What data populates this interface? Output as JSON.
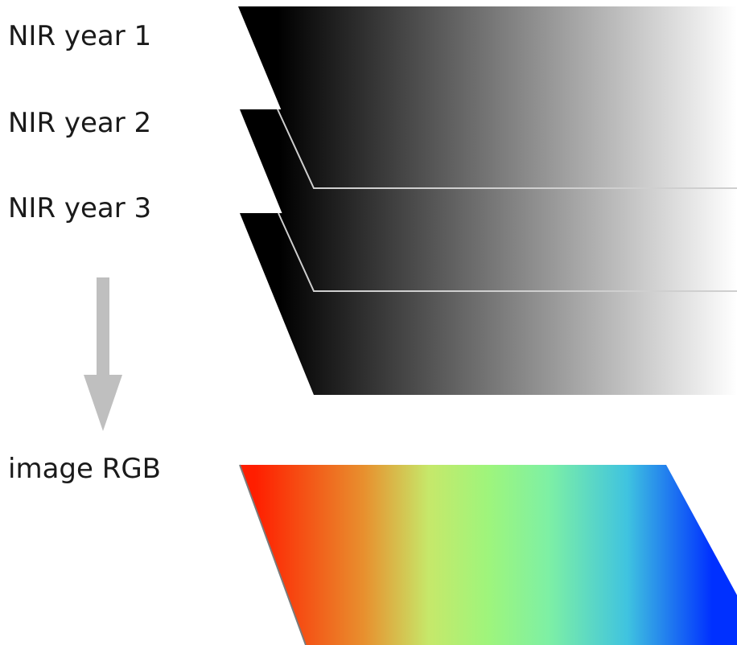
{
  "labels": {
    "nir_year_1": "NIR year 1",
    "nir_year_2": "NIR year 2",
    "nir_year_3": "NIR year 3",
    "image_rgb": "image RGB"
  },
  "colors": {
    "gradient_black": "#000000",
    "gradient_white": "#ffffff",
    "layer_edge": "#cfcfcf",
    "arrow": "#bfbfbf",
    "rgb_red": "#ff1e00",
    "rgb_orange": "#e8902e",
    "rgb_yellow_green": "#c6e86a",
    "rgb_light_green": "#9ef57c",
    "rgb_green_cyan": "#7ef0a4",
    "rgb_cyan": "#3fc3e0",
    "rgb_blue": "#0030ff"
  }
}
